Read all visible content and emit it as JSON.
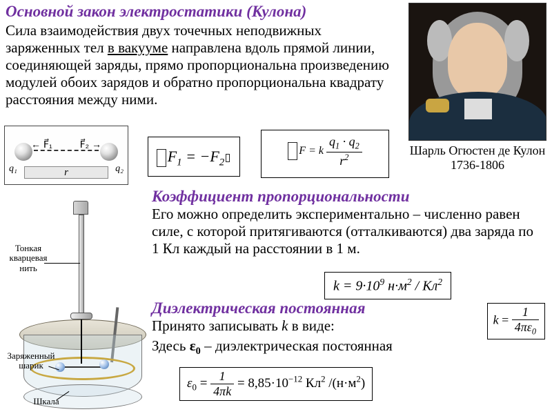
{
  "title": "Основной закон электростатики (Кулона)",
  "law_text_html": "Сила взаимодействия двух точечных неподвижных заряженных тел <span class='underline'>в вакууме</span> направлена вдоль прямой линии, соединяющей заряды, прямо пропорциональна произведению модулей обоих зарядов и обратно пропорциональна квадрату расстояния между ними.",
  "portrait": {
    "caption_name": "Шарль Огюстен де Кулон",
    "caption_years": "1736-1806"
  },
  "force_diagram": {
    "q1": "q₁",
    "q2": "q₂",
    "F1": "F⃗₁",
    "F2": "F⃗₂",
    "r": "r"
  },
  "formulas": {
    "f1_html": "<span class='fbox-inline'></span>F<sub>1</sub> = &minus;F<sub>2</sub><span class='fbox-inline' style='width:6px;height:12px;margin-left:2px;'></span>",
    "f2_prefix_html": "<span class='fbox-inline'></span><i>F</i>&nbsp;=&nbsp;<i>k</i>&nbsp;",
    "f2_num": "q<sub>1</sub> · q<sub>2</sub>",
    "f2_den": "r<sup>2</sup>",
    "k_value_html": "k = 9·10<sup>9</sup> н·м<sup>2</sup> / Кл<sup>2</sup>",
    "k_eps_num": "1",
    "k_eps_den": "4πε<sub>0</sub>",
    "eps0_num": "1",
    "eps0_den": "4πk",
    "eps0_val_html": "= 8,85·10<sup>−12</sup> Кл<sup>2</sup> /(н·м<sup>2</sup>)"
  },
  "coeff": {
    "title": "Коэффициент пропорциональности",
    "text": "Его можно определить экспериментально – численно равен силе, с которой притягиваются (отталкиваются) два заряда по 1 Кл каждый на расстоянии в 1 м."
  },
  "dielectric": {
    "title": "Диэлектрическая постоянная",
    "line1_html": "Принято записывать <i>k</i> в виде:",
    "line2_html": "Здесь <b>ε<sub>0</sub></b> – диэлектрическая постоянная"
  },
  "torsion_labels": {
    "thread": "Тонкая кварцевая нить",
    "ball": "Заряженный шарик",
    "scale": "Шкала"
  }
}
